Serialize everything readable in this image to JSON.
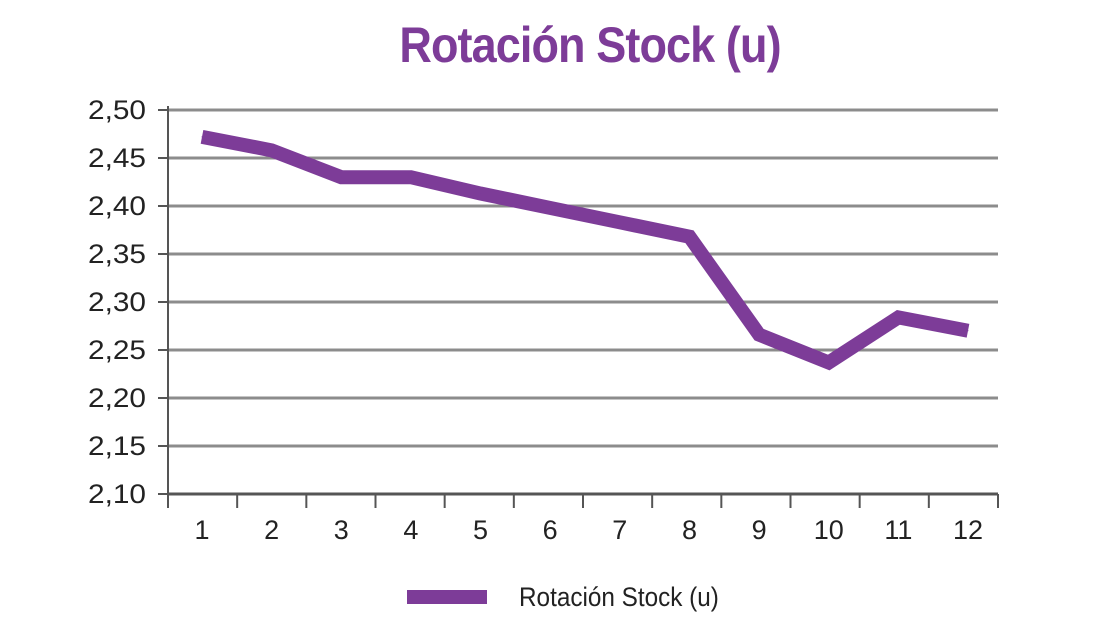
{
  "colors": {
    "series": "#7d3c98",
    "grid": "#8c8c8c",
    "axis": "#555555",
    "text": "#222222"
  },
  "chart_data": {
    "type": "line",
    "title": "Rotación Stock (u)",
    "xlabel": "",
    "ylabel": "",
    "categories": [
      "1",
      "2",
      "3",
      "4",
      "5",
      "6",
      "7",
      "8",
      "9",
      "10",
      "11",
      "12"
    ],
    "y_tick_labels": [
      "2,10",
      "2,15",
      "2,20",
      "2,25",
      "2,30",
      "2,35",
      "2,40",
      "2,45",
      "2,50"
    ],
    "ylim": [
      2.1,
      2.5
    ],
    "grid": true,
    "legend_position": "bottom",
    "series": [
      {
        "name": "Rotación Stock (u)",
        "values": [
          2.472,
          2.458,
          2.43,
          2.43,
          2.413,
          2.398,
          2.383,
          2.368,
          2.266,
          2.237,
          2.284,
          2.27
        ]
      }
    ]
  }
}
